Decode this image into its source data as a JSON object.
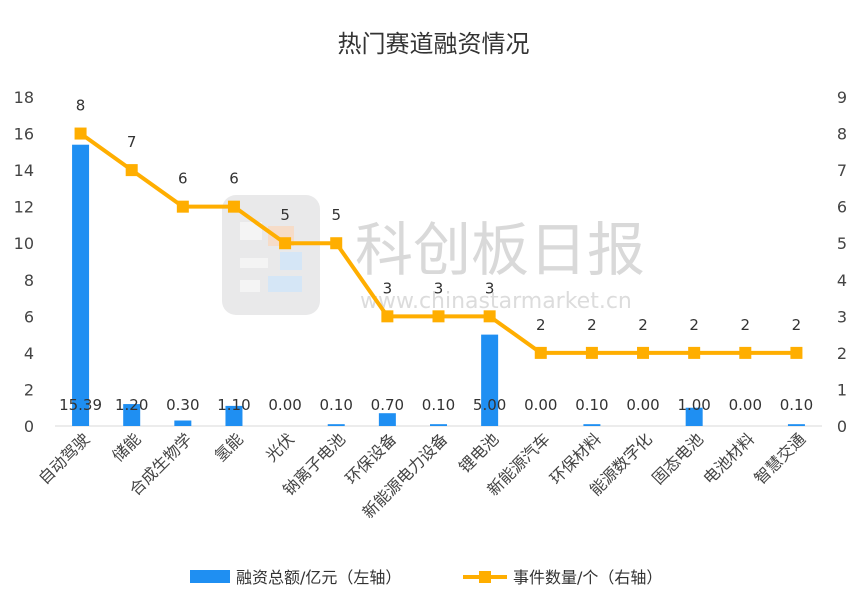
{
  "chart_data": {
    "type": "bar",
    "title": "热门赛道融资情况",
    "categories": [
      "自动驾驶",
      "储能",
      "合成生物学",
      "氢能",
      "光伏",
      "钠离子电池",
      "环保设备",
      "新能源电力设备",
      "锂电池",
      "新能源汽车",
      "环保材料",
      "能源数字化",
      "固态电池",
      "电池材料",
      "智慧交通"
    ],
    "series": [
      {
        "name": "融资总额/亿元（左轴）",
        "type": "bar",
        "axis": "left",
        "color": "#1f8ff2",
        "values": [
          15.39,
          1.2,
          0.3,
          1.1,
          0.0,
          0.1,
          0.7,
          0.1,
          5.0,
          0.0,
          0.1,
          0.0,
          1.0,
          0.0,
          0.1
        ],
        "labels": [
          "15.39",
          "1.20",
          "0.30",
          "1.10",
          "0.00",
          "0.10",
          "0.70",
          "0.10",
          "5.00",
          "0.00",
          "0.10",
          "0.00",
          "1.00",
          "0.00",
          "0.10"
        ]
      },
      {
        "name": "事件数量/个（右轴）",
        "type": "line",
        "axis": "right",
        "color": "#ffae00",
        "values": [
          8,
          7,
          6,
          6,
          5,
          5,
          3,
          3,
          3,
          2,
          2,
          2,
          2,
          2,
          2
        ],
        "labels": [
          "8",
          "7",
          "6",
          "6",
          "5",
          "5",
          "3",
          "3",
          "3",
          "2",
          "2",
          "2",
          "2",
          "2",
          "2"
        ]
      }
    ],
    "left_axis": {
      "min": 0,
      "max": 18,
      "ticks": [
        "0",
        "2",
        "4",
        "6",
        "8",
        "10",
        "12",
        "14",
        "16",
        "18"
      ]
    },
    "right_axis": {
      "min": 0,
      "max": 9,
      "ticks": [
        "0",
        "1",
        "2",
        "3",
        "4",
        "5",
        "6",
        "7",
        "8",
        "9"
      ]
    },
    "legend_position": "bottom",
    "grid": false
  },
  "watermark": {
    "text": "科创板日报",
    "url": "www.chinastarmarket.cn"
  }
}
